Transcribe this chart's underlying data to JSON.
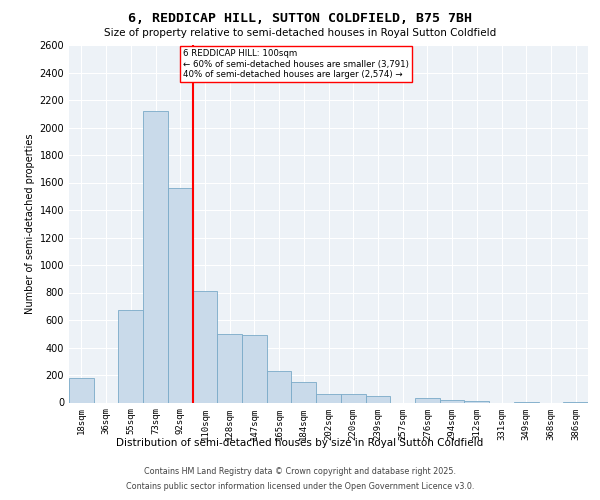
{
  "title": "6, REDDICAP HILL, SUTTON COLDFIELD, B75 7BH",
  "subtitle": "Size of property relative to semi-detached houses in Royal Sutton Coldfield",
  "xlabel": "Distribution of semi-detached houses by size in Royal Sutton Coldfield",
  "ylabel": "Number of semi-detached properties",
  "categories": [
    "18sqm",
    "36sqm",
    "55sqm",
    "73sqm",
    "92sqm",
    "110sqm",
    "128sqm",
    "147sqm",
    "165sqm",
    "184sqm",
    "202sqm",
    "220sqm",
    "239sqm",
    "257sqm",
    "276sqm",
    "294sqm",
    "312sqm",
    "331sqm",
    "349sqm",
    "368sqm",
    "386sqm"
  ],
  "values": [
    180,
    0,
    670,
    2120,
    1560,
    810,
    500,
    490,
    230,
    150,
    60,
    60,
    50,
    0,
    30,
    20,
    10,
    0,
    5,
    0,
    5
  ],
  "bar_color": "#c9daea",
  "bar_edge_color": "#7aaac8",
  "red_line_index": 4.5,
  "red_line_label": "6 REDDICAP HILL: 100sqm",
  "smaller_pct": "60% of semi-detached houses are smaller (3,791)",
  "larger_pct": "40% of semi-detached houses are larger (2,574)",
  "ylim": [
    0,
    2600
  ],
  "yticks": [
    0,
    200,
    400,
    600,
    800,
    1000,
    1200,
    1400,
    1600,
    1800,
    2000,
    2200,
    2400,
    2600
  ],
  "background_color": "#edf2f7",
  "footer_line1": "Contains HM Land Registry data © Crown copyright and database right 2025.",
  "footer_line2": "Contains public sector information licensed under the Open Government Licence v3.0."
}
